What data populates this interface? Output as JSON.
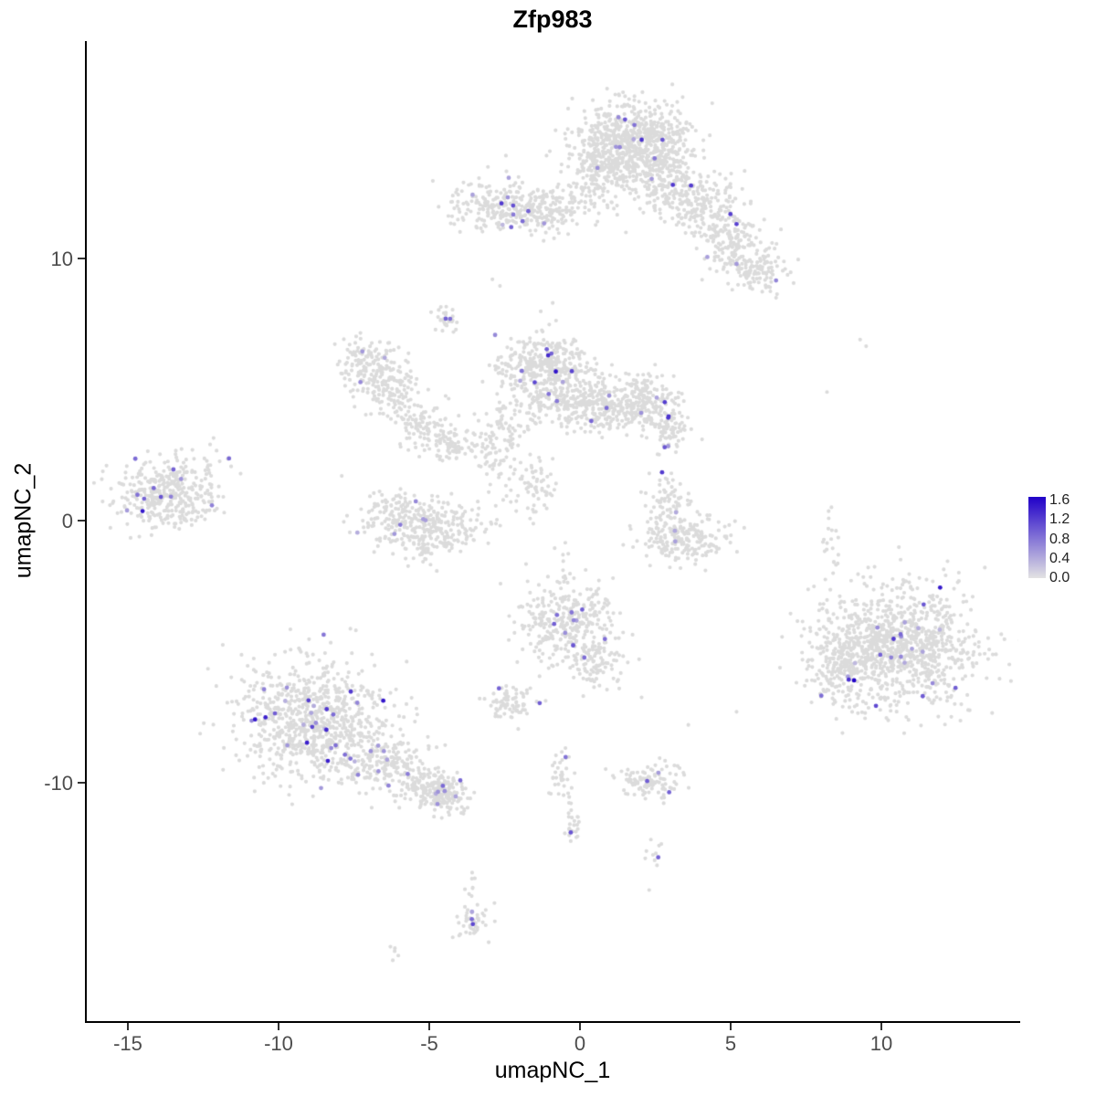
{
  "title": "Zfp983",
  "axes": {
    "xlabel": "umapNC_1",
    "ylabel": "umapNC_2",
    "x_ticks": [
      "-15",
      "-10",
      "-5",
      "0",
      "5",
      "10"
    ],
    "x_tick_values": [
      -15,
      -10,
      -5,
      0,
      5,
      10
    ],
    "y_ticks": [
      "10",
      "0",
      "-10"
    ],
    "y_tick_values": [
      10,
      0,
      -10
    ],
    "x_range": [
      -16.36,
      14.55
    ],
    "y_range": [
      -19.1,
      18.29
    ]
  },
  "legend": {
    "labels": [
      "1.6",
      "1.2",
      "0.8",
      "0.4",
      "0.0"
    ],
    "position": "right",
    "max_value": 1.6,
    "min_value": 0.0
  },
  "chart_data": {
    "type": "scatter",
    "title": "Zfp983",
    "xlabel": "umapNC_1",
    "ylabel": "umapNC_2",
    "xlim": [
      -16.36,
      14.55
    ],
    "ylim": [
      -19.1,
      18.29
    ],
    "grid": false,
    "legend_position": "right",
    "vmax": 1.6,
    "color_gray": "#DBDBDB",
    "color_low": "#E3E3E3",
    "color_high": "#2000C8",
    "clusters": [
      {
        "x": 1.8,
        "y": 14.35,
        "sx": 0.95,
        "sy": 0.8,
        "n": 760,
        "f": 0.012
      },
      {
        "x": 0.55,
        "y": 13.5,
        "sx": 0.45,
        "sy": 0.55,
        "n": 110,
        "f": 0.01
      },
      {
        "x": 2.9,
        "y": 13.0,
        "sx": 0.5,
        "sy": 0.6,
        "n": 120,
        "f": 0.01
      },
      {
        "x": 3.95,
        "y": 12.2,
        "sx": 0.7,
        "sy": 0.6,
        "n": 180,
        "f": 0.011
      },
      {
        "x": 4.9,
        "y": 10.8,
        "sx": 0.6,
        "sy": 0.55,
        "n": 160,
        "f": 0.012
      },
      {
        "x": 5.85,
        "y": 9.5,
        "sx": 0.55,
        "sy": 0.45,
        "n": 120,
        "f": 0.017
      },
      {
        "x": -2.5,
        "y": 11.9,
        "sx": 0.8,
        "sy": 0.5,
        "n": 230,
        "f": 0.04
      },
      {
        "x": -1.2,
        "y": 11.75,
        "sx": 0.5,
        "sy": 0.4,
        "n": 100,
        "f": 0.01
      },
      {
        "x": 0.2,
        "y": 12.3,
        "sx": 0.6,
        "sy": 0.45,
        "n": 55,
        "f": 0
      },
      {
        "x": -4.45,
        "y": 7.65,
        "sx": 0.28,
        "sy": 0.24,
        "n": 26,
        "f": 0.04
      },
      {
        "x": -1.2,
        "y": 5.9,
        "sx": 0.75,
        "sy": 0.65,
        "n": 370,
        "f": 0.027
      },
      {
        "x": -0.1,
        "y": 4.6,
        "sx": 0.8,
        "sy": 0.55,
        "n": 250,
        "f": 0.008
      },
      {
        "x": 0.9,
        "y": 4.2,
        "sx": 0.45,
        "sy": 0.4,
        "n": 70,
        "f": 0
      },
      {
        "x": 2.1,
        "y": 4.5,
        "sx": 0.6,
        "sy": 0.55,
        "n": 220,
        "f": 0.032
      },
      {
        "x": 2.9,
        "y": 3.4,
        "sx": 0.35,
        "sy": 0.4,
        "n": 65,
        "f": 0.03
      },
      {
        "x": -7.0,
        "y": 6.0,
        "sx": 0.5,
        "sy": 0.5,
        "n": 130,
        "f": 0.023
      },
      {
        "x": -6.3,
        "y": 4.9,
        "sx": 0.5,
        "sy": 0.5,
        "n": 110,
        "f": 0
      },
      {
        "x": -5.3,
        "y": 3.7,
        "sx": 0.5,
        "sy": 0.45,
        "n": 90,
        "f": 0
      },
      {
        "x": -4.4,
        "y": 2.9,
        "sx": 0.4,
        "sy": 0.35,
        "n": 60,
        "f": 0
      },
      {
        "x": -3.5,
        "y": 2.8,
        "sx": 0.4,
        "sy": 0.3,
        "n": 35,
        "f": 0
      },
      {
        "x": -2.6,
        "y": 2.3,
        "sx": 0.35,
        "sy": 0.7,
        "n": 65,
        "f": 0
      },
      {
        "x": -1.6,
        "y": 1.4,
        "sx": 0.3,
        "sy": 0.6,
        "n": 40,
        "f": 0
      },
      {
        "x": -2.4,
        "y": 3.6,
        "sx": 0.45,
        "sy": 0.4,
        "n": 40,
        "f": 0
      },
      {
        "x": -1.3,
        "y": 0.8,
        "sx": 0.25,
        "sy": 0.6,
        "n": 20,
        "f": 0
      },
      {
        "x": -13.7,
        "y": 1.0,
        "sx": 0.85,
        "sy": 0.6,
        "n": 370,
        "f": 0.027
      },
      {
        "x": -12.1,
        "y": 2.4,
        "sx": 0.3,
        "sy": 0.3,
        "n": 12,
        "f": 0.09
      },
      {
        "x": -5.2,
        "y": -0.3,
        "sx": 0.95,
        "sy": 0.55,
        "n": 330,
        "f": 0.018
      },
      {
        "x": -6.2,
        "y": 0.5,
        "sx": 0.4,
        "sy": 0.3,
        "n": 45,
        "f": 0
      },
      {
        "x": 3.4,
        "y": -0.6,
        "sx": 0.7,
        "sy": 0.45,
        "n": 210,
        "f": 0.01
      },
      {
        "x": 2.9,
        "y": 0.8,
        "sx": 0.35,
        "sy": 0.5,
        "n": 60,
        "f": 0.033
      },
      {
        "x": 10.5,
        "y": -4.8,
        "sx": 1.35,
        "sy": 1.15,
        "n": 1000,
        "f": 0.02
      },
      {
        "x": 8.7,
        "y": -5.6,
        "sx": 0.55,
        "sy": 0.75,
        "n": 150,
        "f": 0.02
      },
      {
        "x": 8.3,
        "y": -0.55,
        "sx": 0.2,
        "sy": 0.8,
        "n": 20,
        "f": 0
      },
      {
        "x": -0.45,
        "y": -3.9,
        "sx": 0.75,
        "sy": 0.75,
        "n": 310,
        "f": 0.029
      },
      {
        "x": 0.6,
        "y": -5.4,
        "sx": 0.4,
        "sy": 0.5,
        "n": 85,
        "f": 0.024
      },
      {
        "x": -0.5,
        "y": -1.8,
        "sx": 0.2,
        "sy": 0.6,
        "n": 15,
        "f": 0
      },
      {
        "x": -8.8,
        "y": -7.6,
        "sx": 1.25,
        "sy": 1.15,
        "n": 800,
        "f": 0.038
      },
      {
        "x": -6.4,
        "y": -9.2,
        "sx": 0.7,
        "sy": 0.5,
        "n": 170,
        "f": 0.029
      },
      {
        "x": -5.0,
        "y": -10.2,
        "sx": 0.55,
        "sy": 0.4,
        "n": 140,
        "f": 0.036
      },
      {
        "x": -4.3,
        "y": -10.5,
        "sx": 0.35,
        "sy": 0.3,
        "n": 90,
        "f": 0.044
      },
      {
        "x": -2.35,
        "y": -7.0,
        "sx": 0.4,
        "sy": 0.3,
        "n": 75,
        "f": 0.027
      },
      {
        "x": -0.65,
        "y": -9.7,
        "sx": 0.18,
        "sy": 0.5,
        "n": 35,
        "f": 0.03
      },
      {
        "x": -0.25,
        "y": -11.6,
        "sx": 0.15,
        "sy": 0.5,
        "n": 25,
        "f": 0
      },
      {
        "x": 2.35,
        "y": -9.9,
        "sx": 0.5,
        "sy": 0.33,
        "n": 105,
        "f": 0.029
      },
      {
        "x": 2.55,
        "y": -12.7,
        "sx": 0.2,
        "sy": 0.3,
        "n": 9,
        "f": 0
      },
      {
        "x": -3.5,
        "y": -15.3,
        "sx": 0.3,
        "sy": 0.35,
        "n": 46,
        "f": 0.044
      },
      {
        "x": -3.55,
        "y": -13.9,
        "sx": 0.12,
        "sy": 0.45,
        "n": 8,
        "f": 0
      },
      {
        "x": -6.1,
        "y": -16.5,
        "sx": 0.18,
        "sy": 0.12,
        "n": 5,
        "f": 0
      }
    ],
    "singles": [
      [
        -2.9,
        9.2
      ],
      [
        -2.65,
        8.95
      ],
      [
        9.3,
        6.9
      ],
      [
        9.5,
        6.65
      ],
      [
        8.2,
        4.9
      ],
      [
        5.2,
        -7.3
      ],
      [
        3.6,
        -7.8
      ],
      [
        -11.8,
        0.3
      ],
      [
        -7.9,
        1.7
      ],
      [
        2.05,
        -6.75
      ],
      [
        2.3,
        -14.1
      ],
      [
        6.35,
        9.1
      ],
      [
        -0.9,
        8.3
      ],
      [
        1.1,
        -2.2
      ]
    ],
    "highlight_points": [
      {
        "x": 9.1,
        "y": -6.1,
        "v": 1.6
      },
      {
        "x": -1.05,
        "y": 6.3,
        "v": 1.3
      },
      {
        "x": -3.55,
        "y": -15.4,
        "v": 1.1
      },
      {
        "x": 2.6,
        "y": -12.85,
        "v": 0.9
      },
      {
        "x": -13.9,
        "y": 0.9,
        "v": 1.0
      },
      {
        "x": -8.4,
        "y": -7.2,
        "v": 1.2
      },
      {
        "x": 1.5,
        "y": 15.3,
        "v": 1.0
      },
      {
        "x": -2.6,
        "y": 12.1,
        "v": 1.2
      },
      {
        "x": -4.45,
        "y": 7.7,
        "v": 0.9
      },
      {
        "x": -0.3,
        "y": -11.9,
        "v": 1.0
      }
    ]
  },
  "seed": 123456789
}
